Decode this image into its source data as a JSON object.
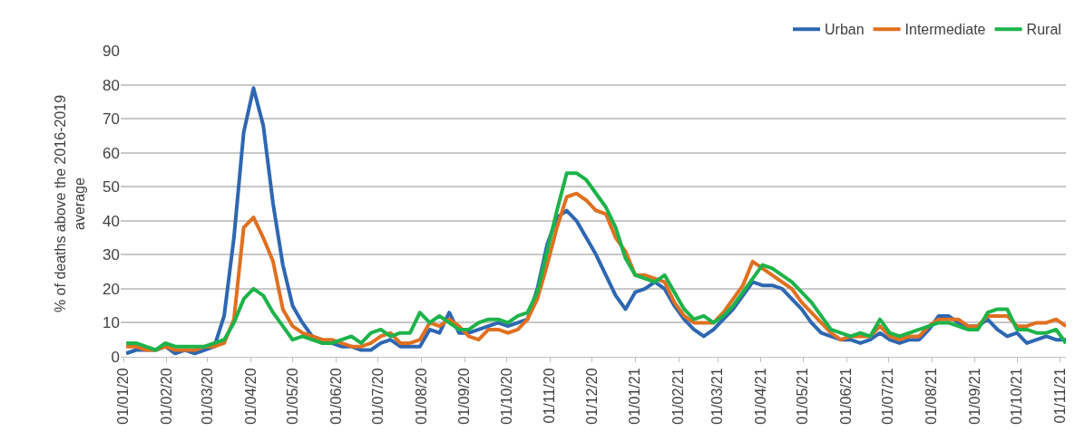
{
  "chart_data": {
    "type": "line",
    "ylabel": "% of deaths above the 2016-2019 average",
    "x": [
      "2020-01-03",
      "2020-01-10",
      "2020-01-17",
      "2020-01-24",
      "2020-01-31",
      "2020-02-07",
      "2020-02-14",
      "2020-02-21",
      "2020-02-28",
      "2020-03-06",
      "2020-03-13",
      "2020-03-20",
      "2020-03-27",
      "2020-04-03",
      "2020-04-10",
      "2020-04-17",
      "2020-04-24",
      "2020-05-01",
      "2020-05-08",
      "2020-05-15",
      "2020-05-22",
      "2020-05-29",
      "2020-06-05",
      "2020-06-12",
      "2020-06-19",
      "2020-06-26",
      "2020-07-03",
      "2020-07-10",
      "2020-07-17",
      "2020-07-24",
      "2020-07-31",
      "2020-08-07",
      "2020-08-14",
      "2020-08-21",
      "2020-08-28",
      "2020-09-04",
      "2020-09-11",
      "2020-09-18",
      "2020-09-25",
      "2020-10-02",
      "2020-10-09",
      "2020-10-16",
      "2020-10-23",
      "2020-10-30",
      "2020-11-06",
      "2020-11-13",
      "2020-11-20",
      "2020-11-27",
      "2020-12-04",
      "2020-12-11",
      "2020-12-18",
      "2020-12-25",
      "2021-01-01",
      "2021-01-08",
      "2021-01-15",
      "2021-01-22",
      "2021-01-29",
      "2021-02-05",
      "2021-02-12",
      "2021-02-19",
      "2021-02-26",
      "2021-03-05",
      "2021-03-12",
      "2021-03-19",
      "2021-03-26",
      "2021-04-02",
      "2021-04-09",
      "2021-04-16",
      "2021-04-23",
      "2021-04-30",
      "2021-05-07",
      "2021-05-14",
      "2021-05-21",
      "2021-05-28",
      "2021-06-04",
      "2021-06-11",
      "2021-06-18",
      "2021-06-25",
      "2021-07-02",
      "2021-07-09",
      "2021-07-16",
      "2021-07-23",
      "2021-07-30",
      "2021-08-06",
      "2021-08-13",
      "2021-08-20",
      "2021-08-27",
      "2021-09-03",
      "2021-09-10",
      "2021-09-17",
      "2021-09-24",
      "2021-10-01",
      "2021-10-08",
      "2021-10-15",
      "2021-10-22",
      "2021-10-29",
      "2021-11-05"
    ],
    "xlim": [
      "2019-12-30",
      "2021-11-05"
    ],
    "xticks": [
      {
        "value": "2020-01-01",
        "label": "01/01/20"
      },
      {
        "value": "2020-02-01",
        "label": "01/02/20"
      },
      {
        "value": "2020-03-01",
        "label": "01/03/20"
      },
      {
        "value": "2020-04-01",
        "label": "01/04/20"
      },
      {
        "value": "2020-05-01",
        "label": "01/05/20"
      },
      {
        "value": "2020-06-01",
        "label": "01/06/20"
      },
      {
        "value": "2020-07-01",
        "label": "01/07/20"
      },
      {
        "value": "2020-08-01",
        "label": "01/08/20"
      },
      {
        "value": "2020-09-01",
        "label": "01/09/20"
      },
      {
        "value": "2020-10-01",
        "label": "01/10/20"
      },
      {
        "value": "2020-11-01",
        "label": "01/11/20"
      },
      {
        "value": "2020-12-01",
        "label": "01/12/20"
      },
      {
        "value": "2021-01-01",
        "label": "01/01/21"
      },
      {
        "value": "2021-02-01",
        "label": "01/02/21"
      },
      {
        "value": "2021-03-01",
        "label": "01/03/21"
      },
      {
        "value": "2021-04-01",
        "label": "01/04/21"
      },
      {
        "value": "2021-05-01",
        "label": "01/05/21"
      },
      {
        "value": "2021-06-01",
        "label": "01/06/21"
      },
      {
        "value": "2021-07-01",
        "label": "01/07/21"
      },
      {
        "value": "2021-08-01",
        "label": "01/08/21"
      },
      {
        "value": "2021-09-01",
        "label": "01/09/21"
      },
      {
        "value": "2021-10-01",
        "label": "01/10/21"
      },
      {
        "value": "2021-11-01",
        "label": "01/11/21"
      }
    ],
    "ylim": [
      0,
      90
    ],
    "yticks": [
      0,
      10,
      20,
      30,
      40,
      50,
      60,
      70,
      80,
      90
    ],
    "grid": "y",
    "legend": "top right",
    "marker": "none",
    "line_style": "solid",
    "series": [
      {
        "name": "Urban",
        "color": "#2e67b1",
        "values": [
          1,
          2,
          2,
          2,
          3,
          1,
          2,
          1,
          2,
          3,
          12,
          35,
          66,
          79,
          68,
          45,
          27,
          15,
          10,
          6,
          5,
          4,
          3,
          3,
          2,
          2,
          4,
          5,
          3,
          3,
          3,
          8,
          7,
          13,
          7,
          7,
          8,
          9,
          10,
          9,
          10,
          11,
          20,
          33,
          41,
          43,
          40,
          35,
          30,
          24,
          18,
          14,
          19,
          20,
          22,
          20,
          15,
          11,
          8,
          6,
          8,
          11,
          14,
          18,
          22,
          21,
          21,
          20,
          17,
          14,
          10,
          7,
          6,
          5,
          5,
          4,
          5,
          7,
          5,
          4,
          5,
          5,
          8,
          12,
          12,
          10,
          9,
          9,
          11,
          8,
          6,
          7,
          4,
          5,
          6,
          5,
          5
        ]
      },
      {
        "name": "Intermediate",
        "color": "#e07020",
        "values": [
          3,
          3,
          2,
          2,
          3,
          2,
          2,
          2,
          3,
          3,
          4,
          11,
          38,
          41,
          35,
          28,
          14,
          9,
          7,
          6,
          5,
          5,
          4,
          3,
          3,
          4,
          6,
          7,
          4,
          4,
          5,
          10,
          9,
          11,
          9,
          6,
          5,
          8,
          8,
          7,
          8,
          11,
          17,
          27,
          38,
          47,
          48,
          46,
          43,
          42,
          35,
          31,
          24,
          24,
          23,
          22,
          16,
          12,
          10,
          10,
          10,
          13,
          17,
          21,
          28,
          26,
          24,
          22,
          20,
          16,
          13,
          10,
          7,
          5,
          6,
          6,
          6,
          9,
          6,
          5,
          6,
          6,
          9,
          11,
          11,
          11,
          9,
          9,
          12,
          12,
          12,
          9,
          9,
          10,
          10,
          11,
          9
        ]
      },
      {
        "name": "Rural",
        "color": "#1db34a",
        "values": [
          4,
          4,
          3,
          2,
          4,
          3,
          3,
          3,
          3,
          4,
          5,
          10,
          17,
          20,
          18,
          13,
          9,
          5,
          6,
          5,
          4,
          4,
          5,
          6,
          4,
          7,
          8,
          6,
          7,
          7,
          13,
          10,
          12,
          10,
          8,
          8,
          10,
          11,
          11,
          10,
          12,
          13,
          19,
          31,
          43,
          54,
          54,
          52,
          48,
          44,
          38,
          29,
          24,
          23,
          22,
          24,
          19,
          14,
          11,
          12,
          10,
          12,
          15,
          19,
          23,
          27,
          26,
          24,
          22,
          19,
          16,
          12,
          8,
          7,
          6,
          7,
          6,
          11,
          7,
          6,
          7,
          8,
          9,
          10,
          10,
          9,
          8,
          8,
          13,
          14,
          14,
          8,
          8,
          7,
          7,
          8,
          4
        ]
      }
    ]
  }
}
